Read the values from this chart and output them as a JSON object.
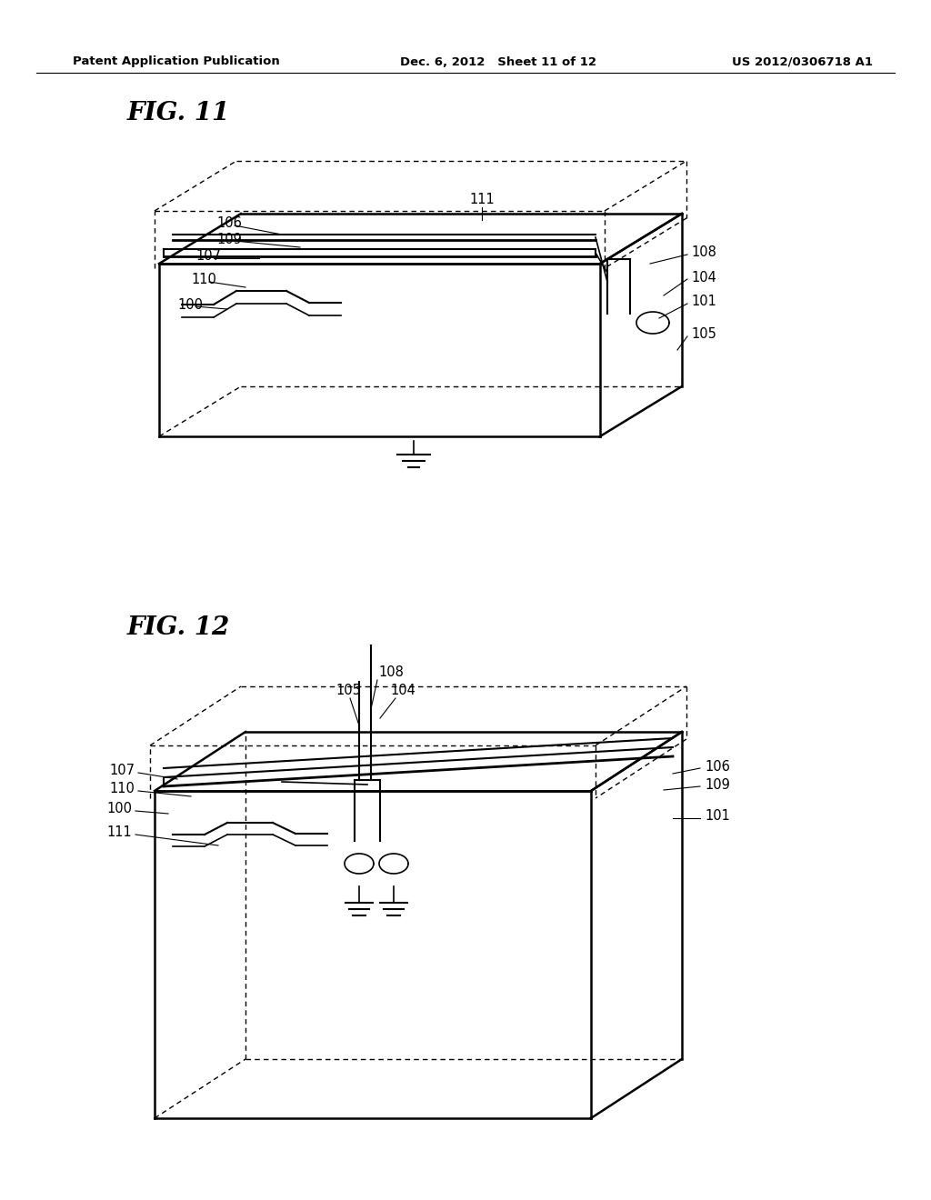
{
  "background_color": "#ffffff",
  "header_left": "Patent Application Publication",
  "header_center": "Dec. 6, 2012   Sheet 11 of 12",
  "header_right": "US 2012/0306718 A1",
  "fig11_title": "FIG. 11",
  "fig12_title": "FIG. 12",
  "line_color": "#000000"
}
